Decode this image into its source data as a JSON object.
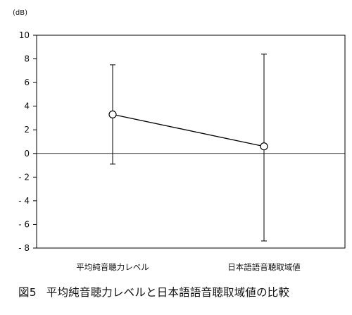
{
  "caption": {
    "label": "図5",
    "text": "平均純音聴力レベルと日本語語音聴取域値の比較"
  },
  "chart_data": {
    "type": "line",
    "y_unit_label": "(dB)",
    "ylim": [
      -8,
      10
    ],
    "ytick_step": 2,
    "ytick_labels": [
      "10",
      "8",
      "6",
      "4",
      "2",
      "0",
      "- 2",
      "- 4",
      "- 6",
      "- 8"
    ],
    "ytick_values": [
      10,
      8,
      6,
      4,
      2,
      0,
      -2,
      -4,
      -6,
      -8
    ],
    "reference_line": 0,
    "grid": false,
    "categories": [
      "平均純音聴力レベル",
      "日本語語音聴取域値"
    ],
    "series": [
      {
        "values": [
          3.3,
          0.6
        ],
        "error_upper": [
          7.5,
          8.4
        ],
        "error_lower": [
          -0.9,
          -7.4
        ]
      }
    ],
    "colors": {
      "line": "#000000",
      "marker_fill": "#ffffff",
      "axis": "#000000"
    }
  }
}
